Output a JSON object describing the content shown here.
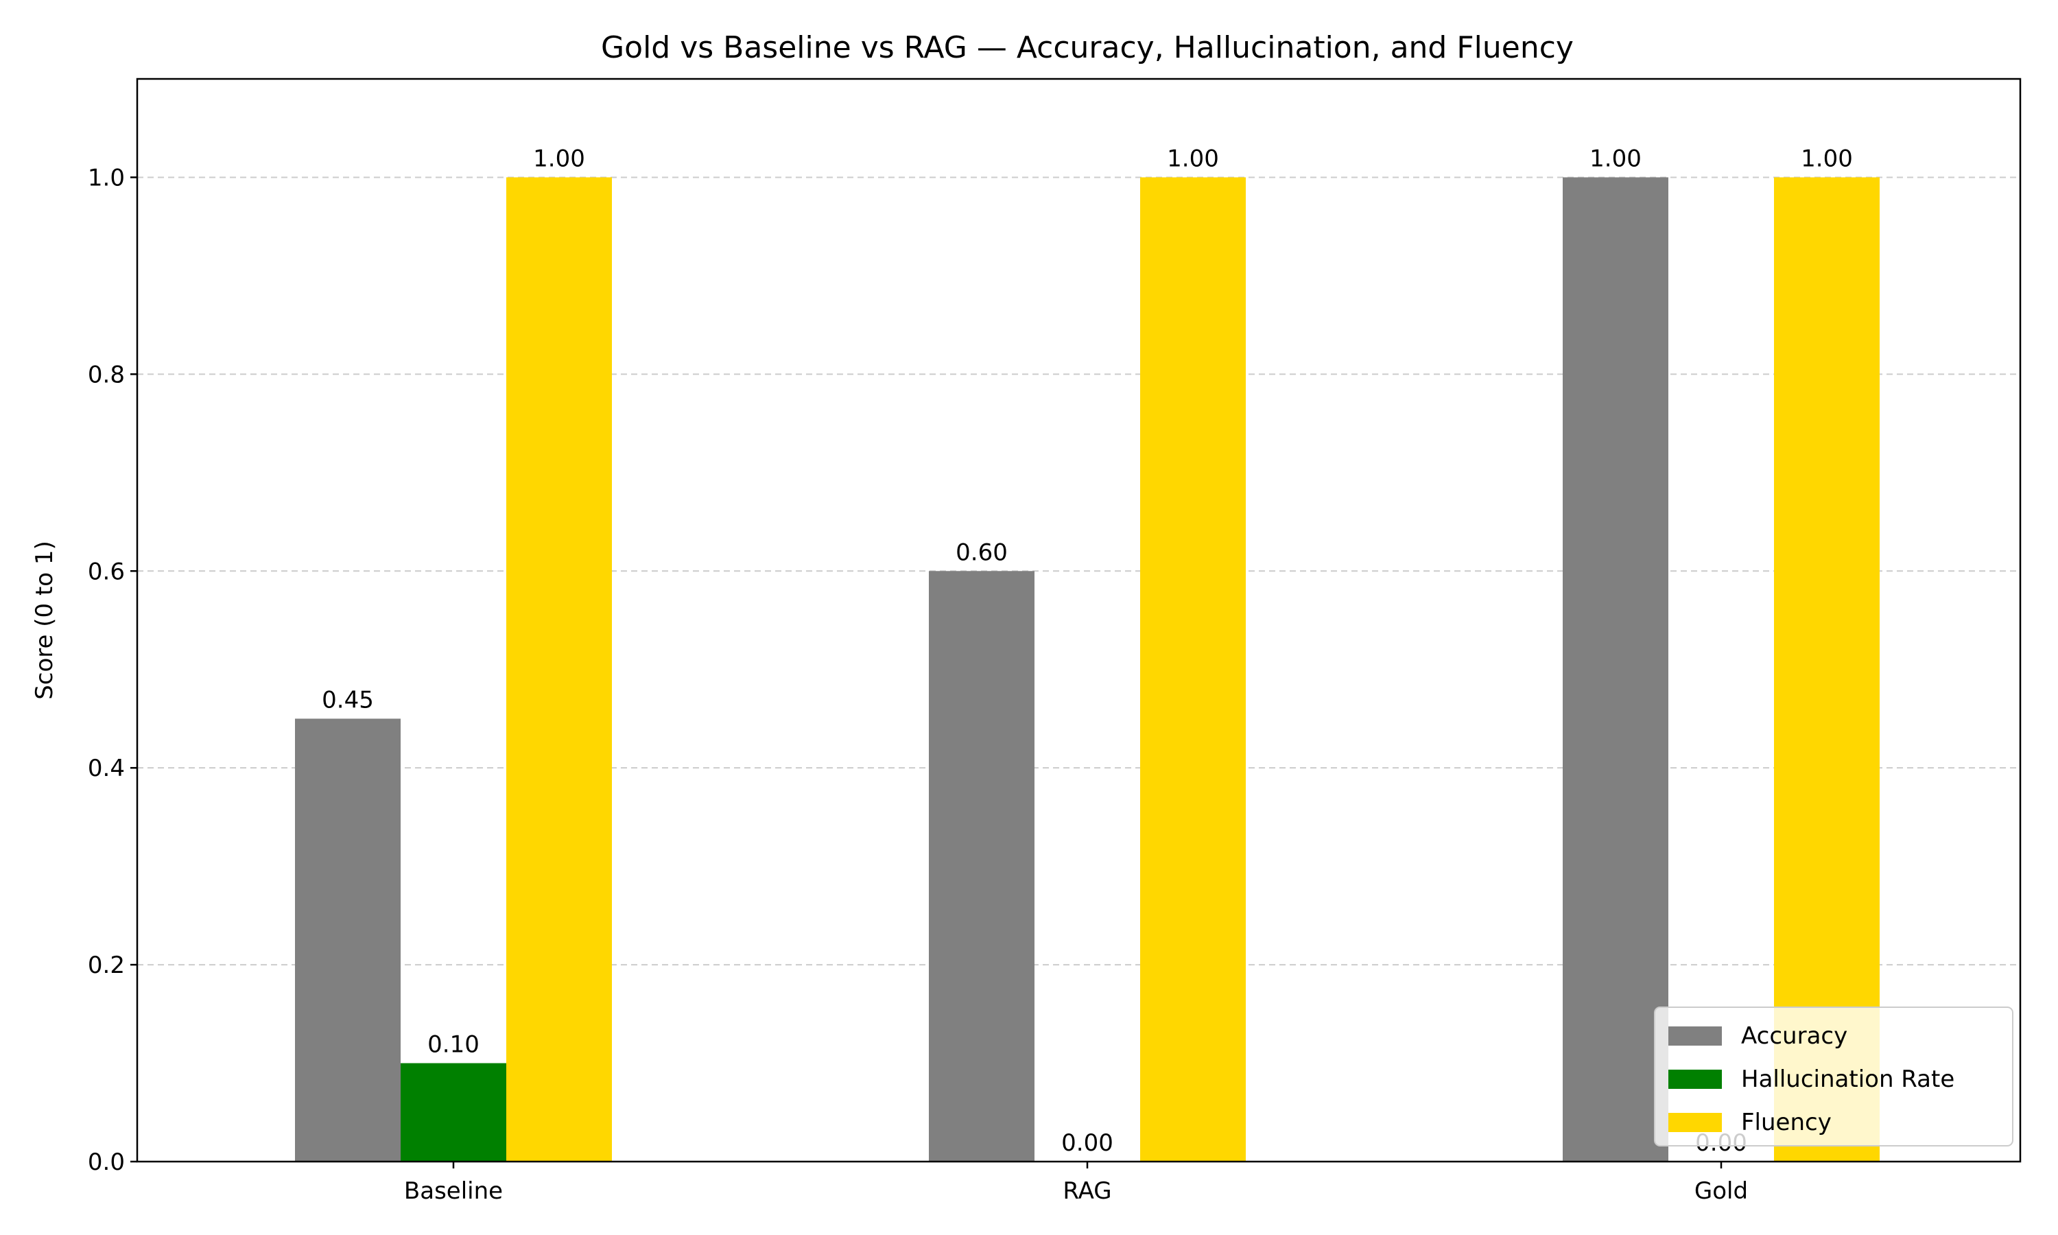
{
  "chart_data": {
    "type": "bar",
    "title": "Gold vs Baseline vs RAG — Accuracy, Hallucination, and Fluency",
    "xlabel": "",
    "ylabel": "Score (0 to 1)",
    "ylim": [
      0,
      1.1
    ],
    "yticks": [
      0.0,
      0.2,
      0.4,
      0.6,
      0.8,
      1.0
    ],
    "ytick_labels": [
      "0.0",
      "0.2",
      "0.4",
      "0.6",
      "0.8",
      "1.0"
    ],
    "grid": "y-dashed",
    "categories": [
      "Baseline",
      "RAG",
      "Gold"
    ],
    "series": [
      {
        "name": "Accuracy",
        "color": "#808080",
        "values": [
          0.45,
          0.6,
          1.0
        ],
        "labels": [
          "0.45",
          "0.60",
          "1.00"
        ]
      },
      {
        "name": "Hallucination Rate",
        "color": "#008000",
        "values": [
          0.1,
          0.0,
          0.0
        ],
        "labels": [
          "0.10",
          "0.00",
          "0.00"
        ]
      },
      {
        "name": "Fluency",
        "color": "#FFD700",
        "values": [
          1.0,
          1.0,
          1.0
        ],
        "labels": [
          "1.00",
          "1.00",
          "1.00"
        ]
      }
    ],
    "legend": "lower-right"
  }
}
